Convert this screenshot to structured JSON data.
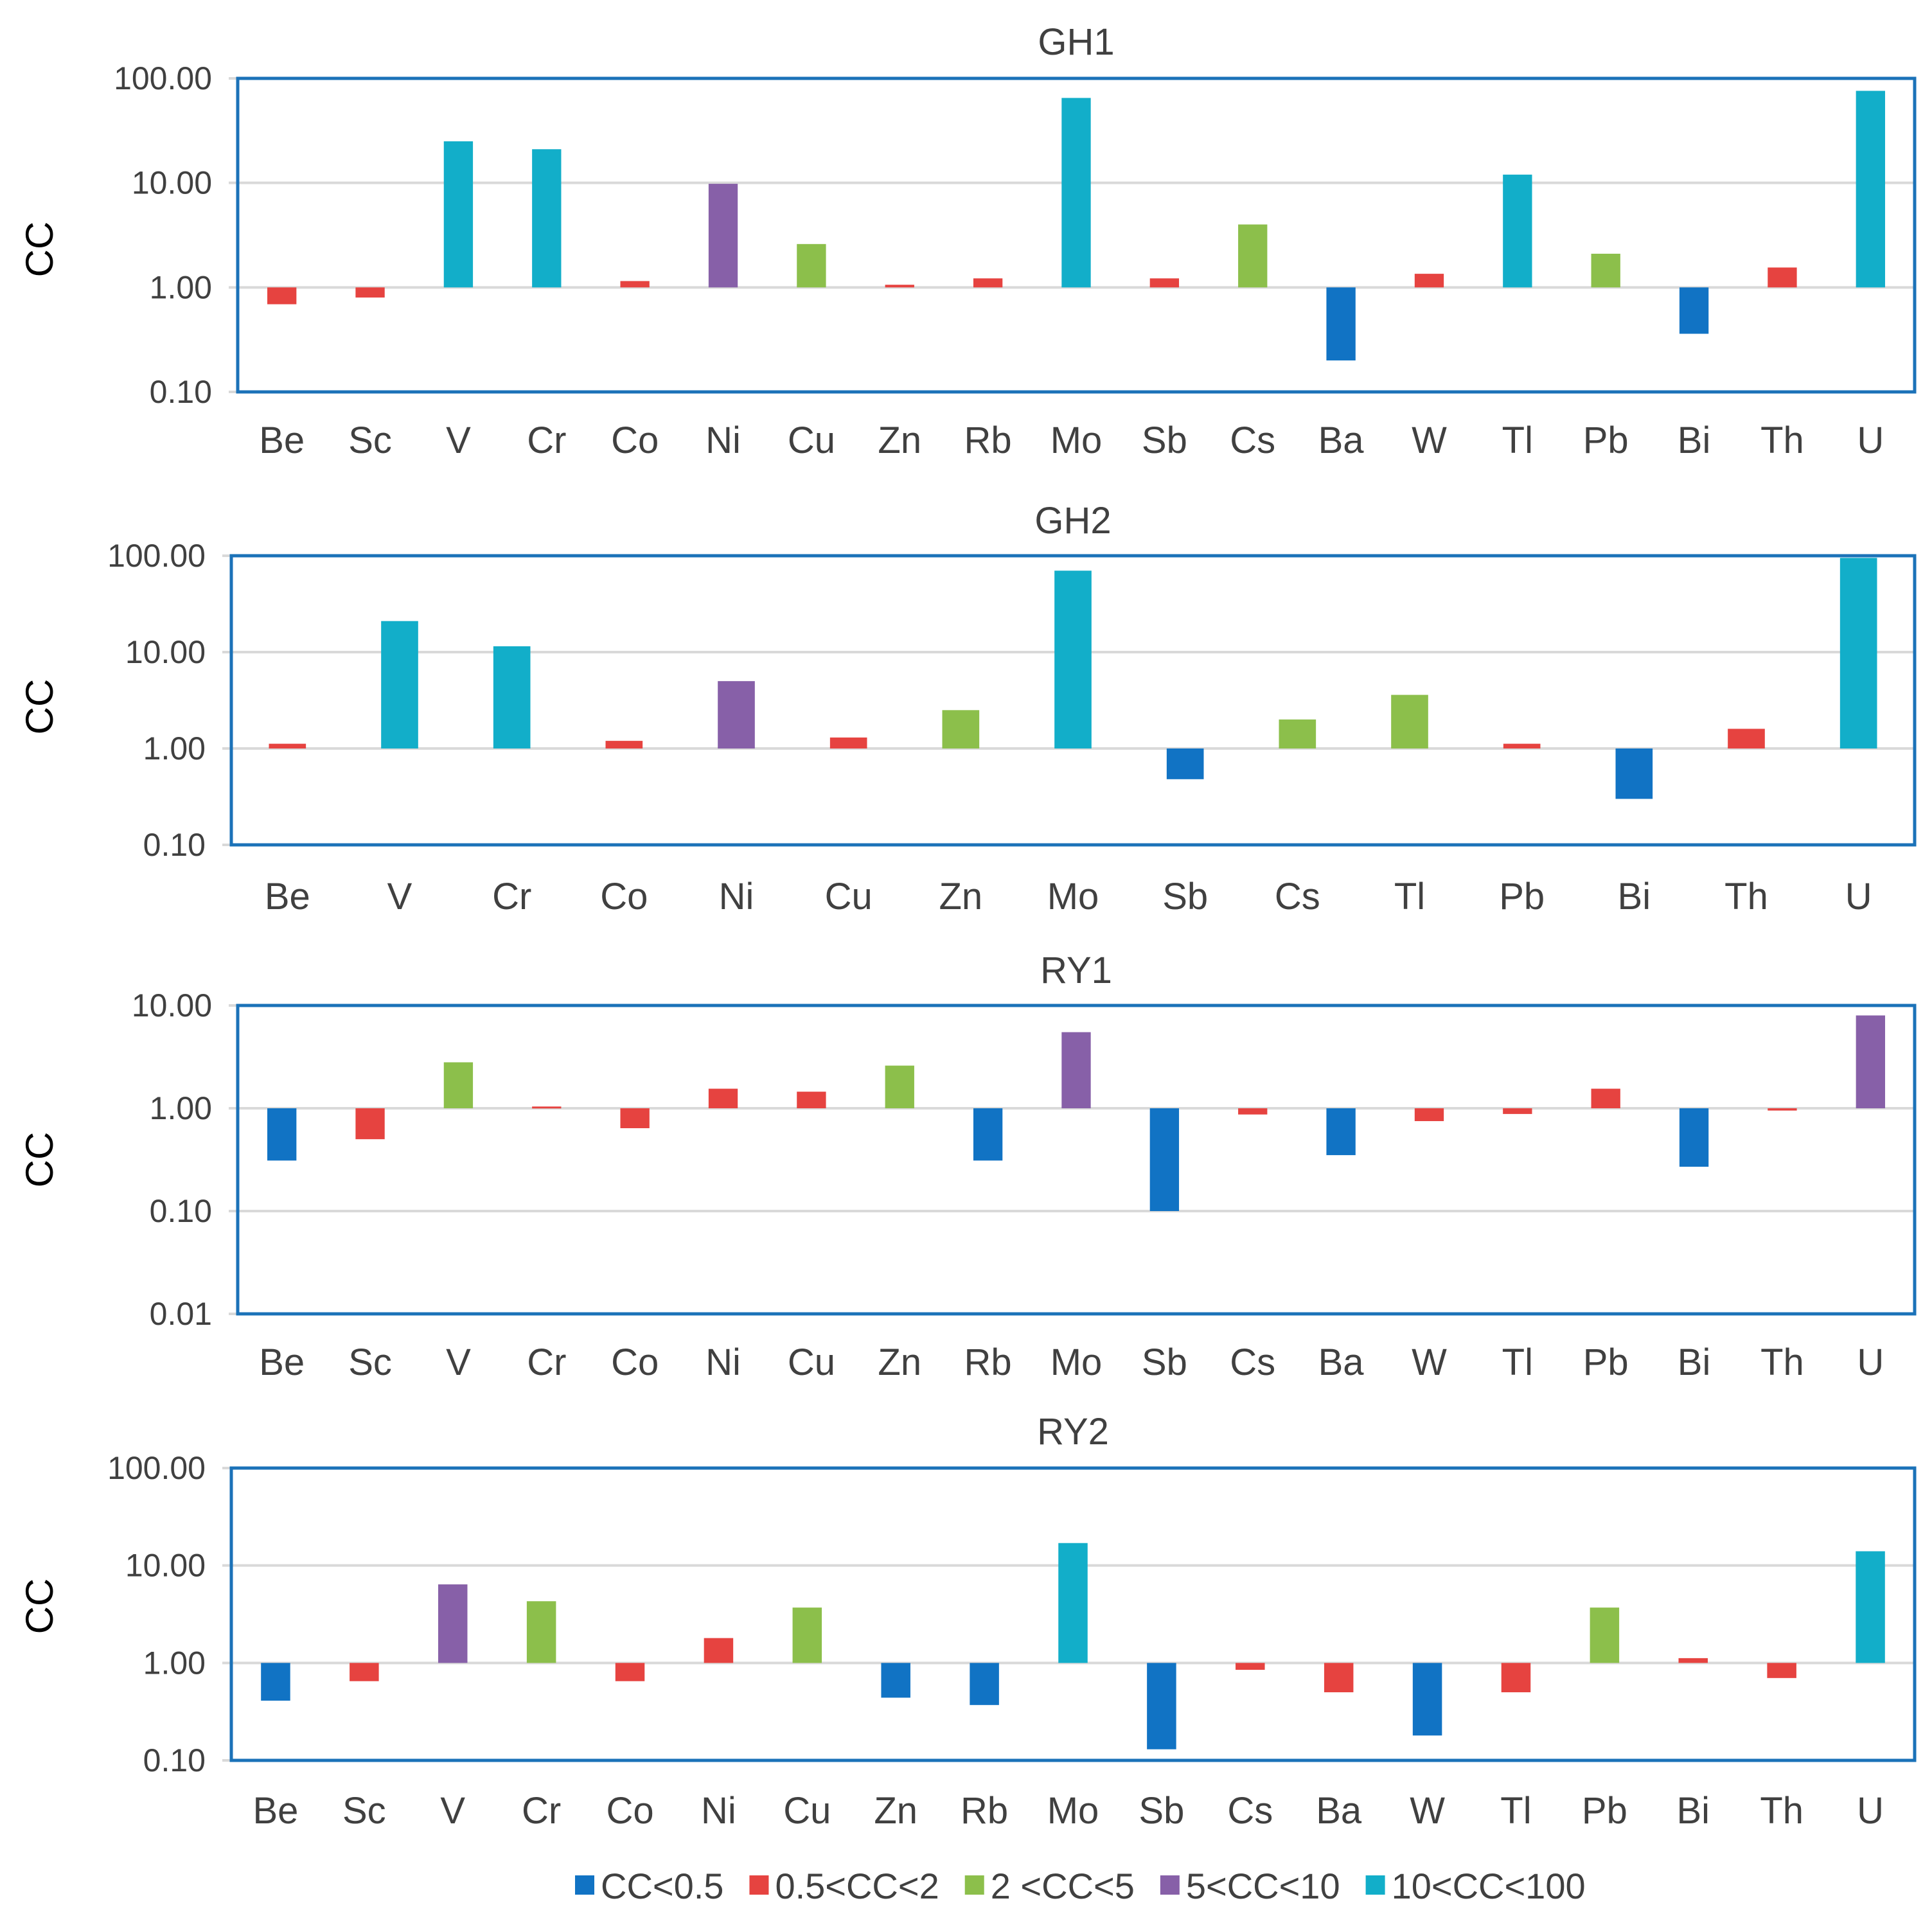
{
  "chart_data": [
    {
      "type": "bar",
      "title": "GH1",
      "ylabel": "CC",
      "yscale": "log",
      "ylim": [
        0.1,
        100
      ],
      "baseline": 1,
      "yticks": [
        "0.10",
        "1.00",
        "10.00",
        "100.00"
      ],
      "categories": [
        "Be",
        "Sc",
        "V",
        "Cr",
        "Co",
        "Ni",
        "Cu",
        "Zn",
        "Rb",
        "Mo",
        "Sb",
        "Cs",
        "Ba",
        "W",
        "Tl",
        "Pb",
        "Bi",
        "Th",
        "U"
      ],
      "values": [
        0.69,
        0.8,
        25,
        21,
        1.15,
        9.8,
        2.6,
        1.06,
        1.22,
        65,
        1.22,
        4.0,
        0.2,
        1.35,
        12,
        2.1,
        0.36,
        1.55,
        76
      ]
    },
    {
      "type": "bar",
      "title": "GH2",
      "ylabel": "CC",
      "yscale": "log",
      "ylim": [
        0.1,
        100
      ],
      "baseline": 1,
      "yticks": [
        "0.10",
        "1.00",
        "10.00",
        "100.00"
      ],
      "categories": [
        "Be",
        "V",
        "Cr",
        "Co",
        "Ni",
        "Cu",
        "Zn",
        "Mo",
        "Sb",
        "Cs",
        "Tl",
        "Pb",
        "Bi",
        "Th",
        "U"
      ],
      "values": [
        1.12,
        21,
        11.5,
        1.2,
        5.0,
        1.3,
        2.5,
        70,
        0.48,
        2.0,
        3.6,
        1.12,
        0.3,
        1.6,
        95
      ]
    },
    {
      "type": "bar",
      "title": "RY1",
      "ylabel": "CC",
      "yscale": "log",
      "ylim": [
        0.01,
        10
      ],
      "baseline": 1,
      "yticks": [
        "0.01",
        "0.10",
        "1.00",
        "10.00"
      ],
      "categories": [
        "Be",
        "Sc",
        "V",
        "Cr",
        "Co",
        "Ni",
        "Cu",
        "Zn",
        "Rb",
        "Mo",
        "Sb",
        "Cs",
        "Ba",
        "W",
        "Tl",
        "Pb",
        "Bi",
        "Th",
        "U"
      ],
      "values": [
        0.31,
        0.5,
        2.8,
        1.04,
        0.64,
        1.55,
        1.45,
        2.6,
        0.31,
        5.5,
        0.1,
        0.87,
        0.35,
        0.75,
        0.88,
        1.55,
        0.27,
        0.95,
        8.0
      ]
    },
    {
      "type": "bar",
      "title": "RY2",
      "ylabel": "CC",
      "yscale": "log",
      "ylim": [
        0.1,
        100
      ],
      "baseline": 1,
      "yticks": [
        "0.10",
        "1.00",
        "10.00",
        "100.00"
      ],
      "categories": [
        "Be",
        "Sc",
        "V",
        "Cr",
        "Co",
        "Ni",
        "Cu",
        "Zn",
        "Rb",
        "Mo",
        "Sb",
        "Cs",
        "Ba",
        "W",
        "Tl",
        "Pb",
        "Bi",
        "Th",
        "U"
      ],
      "values": [
        0.41,
        0.65,
        6.4,
        4.3,
        0.65,
        1.8,
        3.7,
        0.44,
        0.37,
        17,
        0.13,
        0.85,
        0.5,
        0.18,
        0.5,
        3.7,
        1.12,
        0.7,
        14
      ]
    }
  ],
  "legend": {
    "position": "bottom",
    "items": [
      {
        "label": "CC<0.5",
        "color": "#1173c4",
        "min": 0,
        "max": 0.5
      },
      {
        "label": "0.5<CC<2",
        "color": "#e64340",
        "min": 0.5,
        "max": 2
      },
      {
        "label": "2 <CC<5",
        "color": "#8cbf4b",
        "min": 2,
        "max": 5
      },
      {
        "label": "5<CC<10",
        "color": "#8760a8",
        "min": 5,
        "max": 10
      },
      {
        "label": "10<CC<100",
        "color": "#12aec9",
        "min": 10,
        "max": 100
      }
    ]
  },
  "style": {
    "frame_color": "#1b72b8",
    "grid_color": "#d9d9d9"
  }
}
